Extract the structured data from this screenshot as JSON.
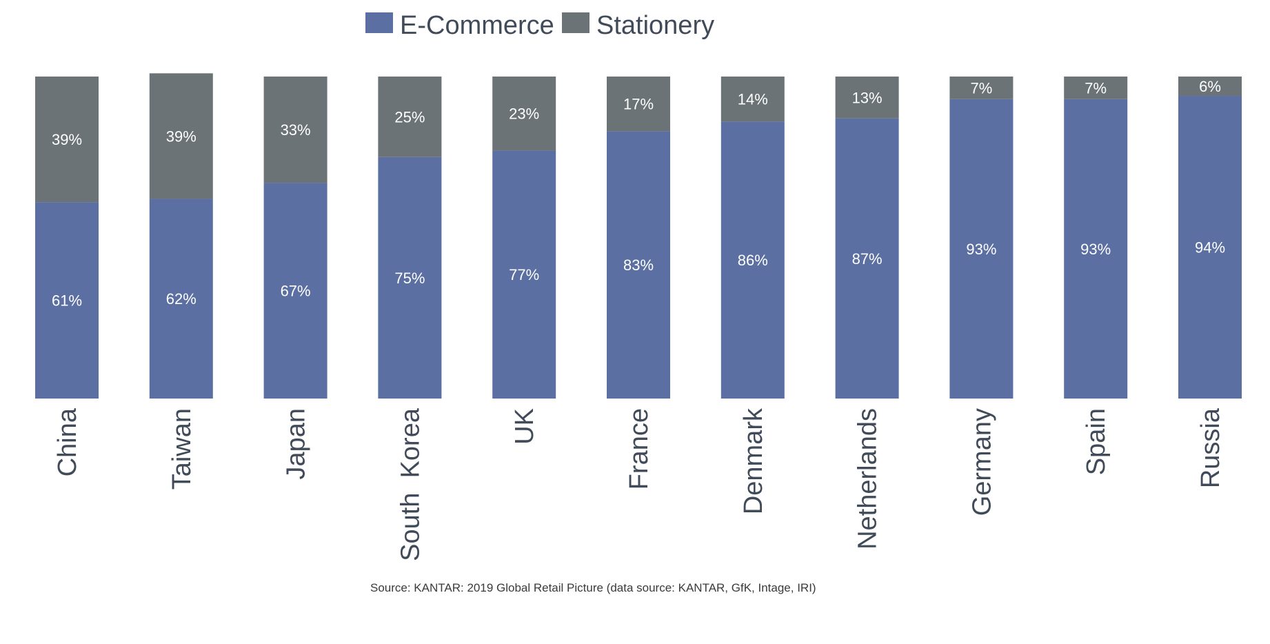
{
  "chart_data": {
    "type": "bar",
    "stacked": true,
    "orientation": "vertical",
    "normalized_percent": true,
    "categories": [
      "China",
      "Taiwan",
      "Japan",
      "South  Korea",
      "UK",
      "France",
      "Denmark",
      "Netherlands",
      "Germany",
      "Spain",
      "Russia"
    ],
    "series": [
      {
        "name": "E-Commerce",
        "color": "#5b6fa2",
        "values": [
          61,
          62,
          67,
          75,
          77,
          83,
          86,
          87,
          93,
          93,
          94
        ],
        "labels": [
          "61%",
          "62%",
          "67%",
          "75%",
          "77%",
          "83%",
          "86%",
          "87%",
          "93%",
          "93%",
          "94%"
        ]
      },
      {
        "name": "Stationery",
        "color": "#6b7377",
        "values": [
          39,
          39,
          33,
          25,
          23,
          17,
          14,
          13,
          7,
          7,
          6
        ],
        "labels": [
          "39%",
          "39%",
          "33%",
          "25%",
          "23%",
          "17%",
          "14%",
          "13%",
          "7%",
          "7%",
          "6%"
        ]
      }
    ],
    "ylim": [
      0,
      100
    ],
    "grid": false,
    "legend_position": "top-center",
    "category_label_rotation": "vertical",
    "source_note": "Source: KANTAR: 2019 Global Retail Picture  (data source: KANTAR, GfK, Intage, IRI)"
  }
}
